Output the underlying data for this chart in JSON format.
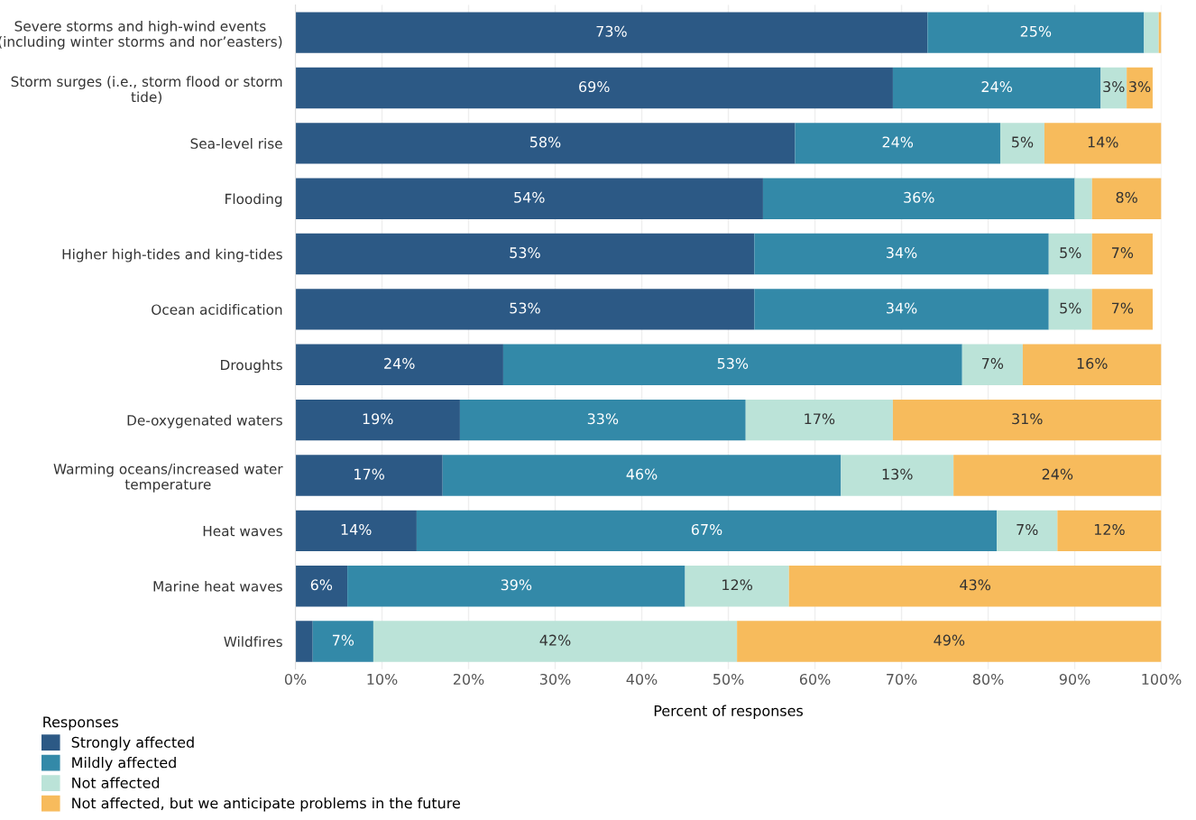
{
  "chart_data": {
    "type": "bar",
    "orientation": "horizontal",
    "stacked": true,
    "xlabel": "Percent of responses",
    "legend_title": "Responses",
    "legend": "bottom left",
    "grid": "x",
    "categories": [
      "Severe storms and high-wind events\n(including winter storms and nor’easters)",
      "Storm surges (i.e., storm flood or storm\ntide)",
      "Sea-level rise",
      "Flooding",
      "Higher high-tides and king-tides",
      "Ocean acidification",
      "Droughts",
      "De-oxygenated waters",
      "Warming oceans/increased water\ntemperature",
      "Heat waves",
      "Marine heat waves",
      "Wildfires"
    ],
    "xlim": [
      0,
      100
    ],
    "xticks": [
      {
        "value": 0,
        "label": "0%"
      },
      {
        "value": 10,
        "label": "10%"
      },
      {
        "value": 20,
        "label": "20%"
      },
      {
        "value": 30,
        "label": "30%"
      },
      {
        "value": 40,
        "label": "40%"
      },
      {
        "value": 50,
        "label": "50%"
      },
      {
        "value": 60,
        "label": "60%"
      },
      {
        "value": 70,
        "label": "70%"
      },
      {
        "value": 80,
        "label": "80%"
      },
      {
        "value": 90,
        "label": "90%"
      },
      {
        "value": 100,
        "label": "100%"
      }
    ],
    "series": [
      {
        "name": "Strongly affected",
        "color": "#2c5985",
        "values": [
          73,
          69,
          57.7,
          54,
          53,
          53,
          24,
          19,
          17,
          14,
          6,
          2
        ],
        "value_labels": [
          "73%",
          "69%",
          "58%",
          "54%",
          "53%",
          "53%",
          "24%",
          "19%",
          "17%",
          "14%",
          "6%",
          null
        ]
      },
      {
        "name": "Mildly affected",
        "color": "#3389a8",
        "values": [
          25,
          24,
          23.7,
          36,
          34,
          34,
          53,
          33,
          46,
          67,
          39,
          7
        ],
        "value_labels": [
          "25%",
          "24%",
          "24%",
          "36%",
          "34%",
          "34%",
          "53%",
          "33%",
          "46%",
          "67%",
          "39%",
          "7%"
        ]
      },
      {
        "name": "Not affected",
        "color": "#bbe3d8",
        "values": [
          1.7,
          3,
          5.1,
          2,
          5,
          5,
          7,
          17,
          13,
          7,
          12,
          42
        ],
        "value_labels": [
          null,
          "3%",
          "5%",
          null,
          "5%",
          "5%",
          "7%",
          "17%",
          "13%",
          "7%",
          "12%",
          "42%"
        ]
      },
      {
        "name": "Not affected, but we anticipate problems in the future",
        "color": "#f7bb5c",
        "values": [
          0.3,
          3,
          13.5,
          8,
          7,
          7,
          16,
          31,
          24,
          12,
          43,
          49
        ],
        "value_labels": [
          null,
          "3%",
          "14%",
          "8%",
          "7%",
          "7%",
          "16%",
          "31%",
          "24%",
          "12%",
          "43%",
          "49%"
        ]
      }
    ]
  }
}
